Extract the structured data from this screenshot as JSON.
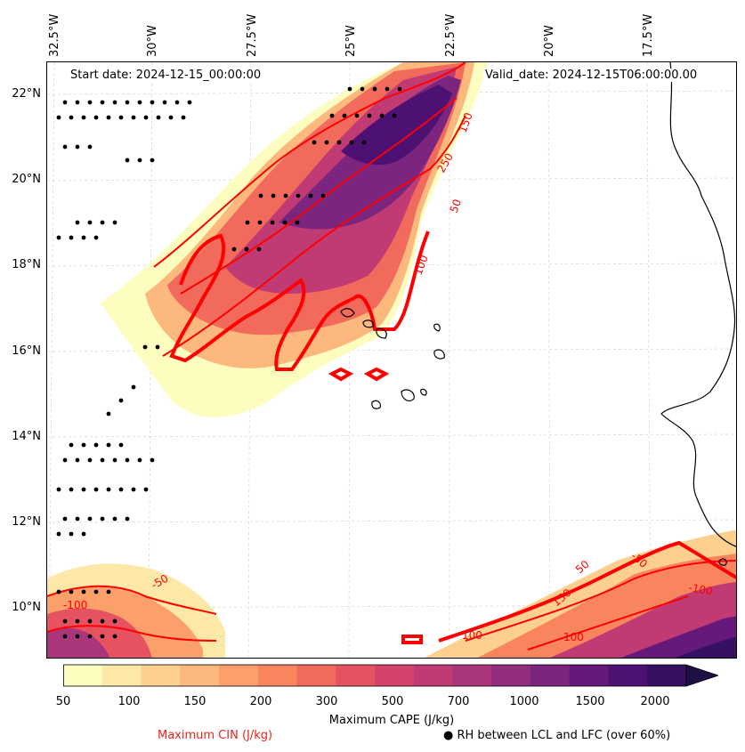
{
  "header": {
    "start_date": "Start date: 2024-12-15_00:00:00",
    "valid_date": "Valid_date: 2024-12-15T06:00:00.00"
  },
  "axes": {
    "longitudes": [
      "32.5°W",
      "30°W",
      "27.5°W",
      "25°W",
      "22.5°W",
      "20°W",
      "17.5°W"
    ],
    "latitudes": [
      "22°N",
      "20°N",
      "18°N",
      "16°N",
      "14°N",
      "12°N",
      "10°N"
    ]
  },
  "contours": {
    "cin_labels": [
      "50",
      "100",
      "150",
      "250",
      "-50",
      "-100",
      "50",
      "150",
      "-100",
      "100",
      "100",
      "-50"
    ]
  },
  "colorbar": {
    "ticks": [
      "50",
      "100",
      "150",
      "200",
      "300",
      "500",
      "700",
      "1000",
      "1500",
      "2000"
    ],
    "colors": [
      "#fcfdbf",
      "#fde8a8",
      "#fdd08f",
      "#fdb97d",
      "#fca06b",
      "#f9855e",
      "#f26a5b",
      "#e6525f",
      "#d5426a",
      "#c03b74",
      "#a9357b",
      "#922d7e",
      "#7b257f",
      "#64197b",
      "#4c1173",
      "#351063",
      "#1e0f44"
    ]
  },
  "legend": {
    "cape_label": "Maximum CAPE (J/kg)",
    "cin_label": "Maximum CIN (J/kg)",
    "rh_label": "RH between LCL and LFC (over 60%)",
    "cin_color": "#e8231c"
  }
}
